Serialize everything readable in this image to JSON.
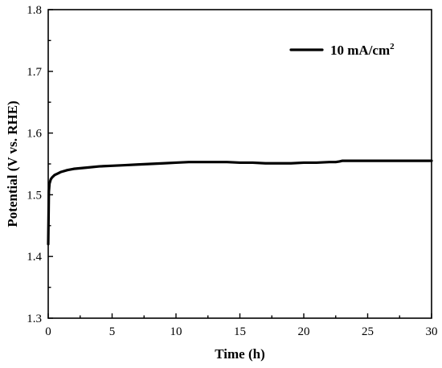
{
  "chart_data": {
    "type": "line",
    "xlabel": "Time (h)",
    "ylabel": "Potential (V vs. RHE)",
    "xlim": [
      0,
      30
    ],
    "ylim": [
      1.3,
      1.8
    ],
    "xticks": [
      0,
      5,
      10,
      15,
      20,
      25,
      30
    ],
    "yticks": [
      1.3,
      1.4,
      1.5,
      1.6,
      1.7,
      1.8
    ],
    "grid": false,
    "legend_position": "top-right",
    "series": [
      {
        "name": "10 mA/cm",
        "name_superscript": "2",
        "color": "#000000",
        "x": [
          0.0,
          0.05,
          0.1,
          0.2,
          0.3,
          0.5,
          0.8,
          1,
          1.5,
          2,
          3,
          4,
          5,
          6,
          7,
          8,
          9,
          10,
          11,
          12,
          13,
          14,
          15,
          16,
          17,
          17.5,
          18,
          19,
          20,
          21,
          22,
          22.5,
          22.8,
          23,
          24,
          25,
          26,
          27,
          28,
          29,
          30
        ],
        "y": [
          1.42,
          1.505,
          1.518,
          1.525,
          1.528,
          1.532,
          1.535,
          1.537,
          1.54,
          1.542,
          1.544,
          1.546,
          1.547,
          1.548,
          1.549,
          1.55,
          1.551,
          1.552,
          1.553,
          1.553,
          1.553,
          1.553,
          1.552,
          1.552,
          1.551,
          1.551,
          1.551,
          1.551,
          1.552,
          1.552,
          1.553,
          1.553,
          1.554,
          1.555,
          1.555,
          1.555,
          1.555,
          1.555,
          1.555,
          1.555,
          1.555
        ]
      }
    ]
  }
}
